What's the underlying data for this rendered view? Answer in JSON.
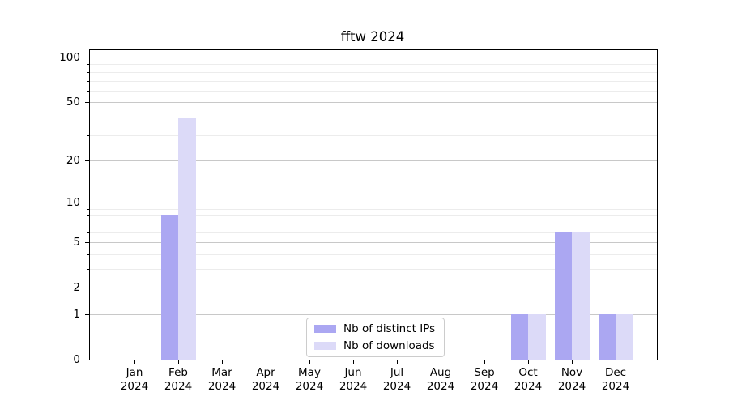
{
  "chart_data": {
    "type": "bar",
    "title": "fftw 2024",
    "xlabel": "",
    "ylabel": "",
    "categories": [
      "Jan",
      "Feb",
      "Mar",
      "Apr",
      "May",
      "Jun",
      "Jul",
      "Aug",
      "Sep",
      "Oct",
      "Nov",
      "Dec"
    ],
    "category_year": "2024",
    "series": [
      {
        "name": "Nb of distinct IPs",
        "color": "#aba7f2",
        "values": [
          0,
          8,
          0,
          0,
          0,
          0,
          0,
          0,
          0,
          1,
          6,
          1
        ]
      },
      {
        "name": "Nb of downloads",
        "color": "#dcdaf8",
        "values": [
          0,
          39,
          0,
          0,
          0,
          0,
          0,
          0,
          0,
          1,
          6,
          1
        ]
      }
    ],
    "yscale": "log1p",
    "ylim": [
      0,
      112
    ],
    "y_major_ticks": [
      0,
      1,
      2,
      5,
      10,
      20,
      50,
      100
    ],
    "y_minor_ticks": [
      3,
      4,
      6,
      7,
      8,
      9,
      30,
      40,
      60,
      70,
      80,
      90
    ],
    "grid": true,
    "legend_position": "lower center",
    "colors": {
      "grid_major": "#c8c8c8",
      "grid_minor": "#ececec",
      "axis": "#000000",
      "text": "#000000"
    }
  }
}
